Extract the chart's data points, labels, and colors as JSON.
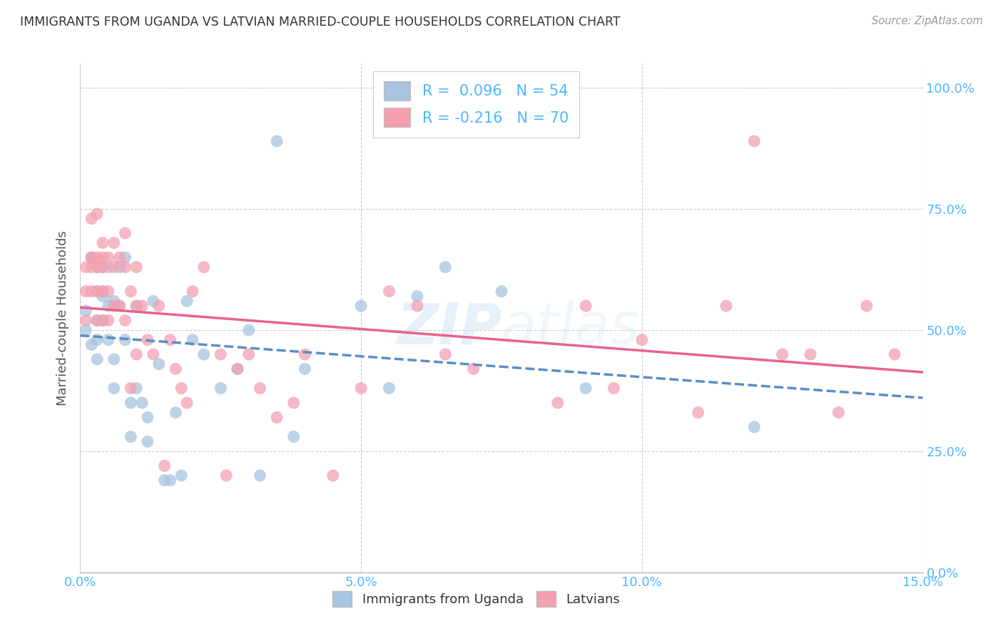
{
  "title": "IMMIGRANTS FROM UGANDA VS LATVIAN MARRIED-COUPLE HOUSEHOLDS CORRELATION CHART",
  "source_text": "Source: ZipAtlas.com",
  "xlabel_ticks_vals": [
    0.0,
    0.05,
    0.1,
    0.15
  ],
  "xlabel_ticks_labels": [
    "0.0%",
    "5.0%",
    "10.0%",
    "15.0%"
  ],
  "ylabel_ticks_vals": [
    0.0,
    0.25,
    0.5,
    0.75,
    1.0
  ],
  "ylabel_ticks_labels": [
    "0.0%",
    "25.0%",
    "50.0%",
    "75.0%",
    "100.0%"
  ],
  "ylabel": "Married-couple Households",
  "legend_labels": [
    "Immigrants from Uganda",
    "Latvians"
  ],
  "r_uganda": 0.096,
  "n_uganda": 54,
  "r_latvians": -0.216,
  "n_latvians": 70,
  "color_uganda": "#a8c4e0",
  "color_latvians": "#f4a0b0",
  "color_uganda_line": "#5b8ec4",
  "color_latvians_line": "#e8628a",
  "color_title": "#333333",
  "color_axis_labels": "#4db8ff",
  "color_source": "#999999",
  "watermark": "ZIPAtlas",
  "xlim": [
    0.0,
    0.15
  ],
  "ylim": [
    0.0,
    1.05
  ],
  "uganda_x": [
    0.001,
    0.001,
    0.002,
    0.002,
    0.002,
    0.003,
    0.003,
    0.003,
    0.003,
    0.003,
    0.004,
    0.004,
    0.004,
    0.004,
    0.005,
    0.005,
    0.005,
    0.006,
    0.006,
    0.006,
    0.007,
    0.007,
    0.008,
    0.008,
    0.009,
    0.009,
    0.01,
    0.01,
    0.011,
    0.012,
    0.012,
    0.013,
    0.014,
    0.015,
    0.016,
    0.017,
    0.018,
    0.019,
    0.02,
    0.022,
    0.025,
    0.028,
    0.03,
    0.032,
    0.035,
    0.038,
    0.04,
    0.05,
    0.055,
    0.06,
    0.065,
    0.075,
    0.09,
    0.12
  ],
  "uganda_y": [
    0.5,
    0.54,
    0.65,
    0.65,
    0.47,
    0.63,
    0.58,
    0.52,
    0.48,
    0.44,
    0.58,
    0.63,
    0.57,
    0.52,
    0.55,
    0.63,
    0.48,
    0.56,
    0.44,
    0.38,
    0.63,
    0.55,
    0.65,
    0.48,
    0.35,
    0.28,
    0.55,
    0.38,
    0.35,
    0.27,
    0.32,
    0.56,
    0.43,
    0.19,
    0.19,
    0.33,
    0.2,
    0.56,
    0.48,
    0.45,
    0.38,
    0.42,
    0.5,
    0.2,
    0.89,
    0.28,
    0.42,
    0.55,
    0.38,
    0.57,
    0.63,
    0.58,
    0.38,
    0.3
  ],
  "latvian_x": [
    0.001,
    0.001,
    0.001,
    0.002,
    0.002,
    0.002,
    0.002,
    0.003,
    0.003,
    0.003,
    0.003,
    0.003,
    0.004,
    0.004,
    0.004,
    0.004,
    0.004,
    0.005,
    0.005,
    0.005,
    0.006,
    0.006,
    0.006,
    0.007,
    0.007,
    0.008,
    0.008,
    0.008,
    0.009,
    0.009,
    0.01,
    0.01,
    0.01,
    0.011,
    0.012,
    0.013,
    0.014,
    0.015,
    0.016,
    0.017,
    0.018,
    0.019,
    0.02,
    0.022,
    0.025,
    0.026,
    0.028,
    0.03,
    0.032,
    0.035,
    0.038,
    0.04,
    0.045,
    0.05,
    0.055,
    0.06,
    0.065,
    0.07,
    0.085,
    0.09,
    0.095,
    0.1,
    0.11,
    0.115,
    0.12,
    0.125,
    0.13,
    0.135,
    0.14,
    0.145
  ],
  "latvian_y": [
    0.63,
    0.58,
    0.52,
    0.73,
    0.65,
    0.63,
    0.58,
    0.74,
    0.65,
    0.63,
    0.58,
    0.52,
    0.68,
    0.65,
    0.63,
    0.58,
    0.52,
    0.65,
    0.58,
    0.52,
    0.68,
    0.63,
    0.55,
    0.65,
    0.55,
    0.7,
    0.63,
    0.52,
    0.58,
    0.38,
    0.63,
    0.55,
    0.45,
    0.55,
    0.48,
    0.45,
    0.55,
    0.22,
    0.48,
    0.42,
    0.38,
    0.35,
    0.58,
    0.63,
    0.45,
    0.2,
    0.42,
    0.45,
    0.38,
    0.32,
    0.35,
    0.45,
    0.2,
    0.38,
    0.58,
    0.55,
    0.45,
    0.42,
    0.35,
    0.55,
    0.38,
    0.48,
    0.33,
    0.55,
    0.89,
    0.45,
    0.45,
    0.33,
    0.55,
    0.45
  ]
}
